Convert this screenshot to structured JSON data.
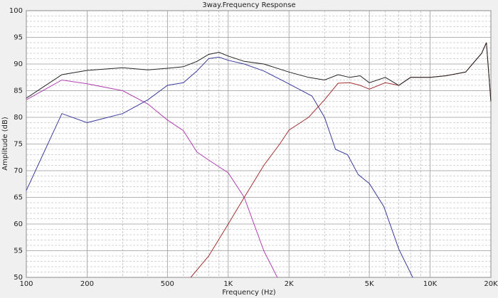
{
  "chart_data": {
    "type": "line",
    "title": "3way.Frequency Response",
    "x_label": "Frequency (Hz)",
    "y_label": "Amplitude (dB)",
    "x_scale": "log",
    "xlim": [
      100,
      20000
    ],
    "ylim": [
      50,
      100
    ],
    "xticks": [
      100,
      200,
      500,
      {
        "value": 1000,
        "label": "1K"
      },
      {
        "value": 2000,
        "label": "2K"
      },
      {
        "value": 5000,
        "label": "5K"
      },
      {
        "value": 10000,
        "label": "10K"
      },
      {
        "value": 20000,
        "label": "20K"
      }
    ],
    "x_minor_ticks": [
      300,
      400,
      600,
      700,
      800,
      900,
      3000,
      4000,
      6000,
      7000,
      8000,
      9000
    ],
    "yticks": [
      50,
      55,
      60,
      65,
      70,
      75,
      80,
      85,
      90,
      95,
      100
    ],
    "y_minor_ticks": [
      51,
      52,
      53,
      54,
      56,
      57,
      58,
      59,
      61,
      62,
      63,
      64,
      66,
      67,
      68,
      69,
      71,
      72,
      73,
      74,
      76,
      77,
      78,
      79,
      81,
      82,
      83,
      84,
      86,
      87,
      88,
      89,
      91,
      92,
      93,
      94,
      96,
      97,
      98,
      99
    ],
    "grid": true,
    "series": [
      {
        "color": "#b040b0",
        "x": [
          100,
          150,
          200,
          300,
          400,
          500,
          600,
          700,
          800,
          1000,
          1200,
          1500,
          1750
        ],
        "values": [
          83.3,
          87,
          86.3,
          85,
          82.5,
          79.5,
          77.5,
          73.5,
          72,
          69.6,
          65,
          55,
          50
        ]
      },
      {
        "color": "#3a3a9a",
        "x": [
          100,
          150,
          200,
          300,
          400,
          500,
          600,
          700,
          800,
          900,
          1000,
          1200,
          1500,
          1900,
          2600,
          3000,
          3400,
          3900,
          4400,
          5000,
          5900,
          7000,
          8200
        ],
        "values": [
          66.3,
          80.7,
          79,
          80.7,
          83.3,
          86,
          86.5,
          88.7,
          91,
          91.3,
          90.7,
          90,
          88.7,
          86.7,
          84,
          80,
          74,
          73,
          69.3,
          67.6,
          63.3,
          55.3,
          50
        ]
      },
      {
        "color": "#a03030",
        "x": [
          652,
          800,
          1000,
          1200,
          1500,
          1800,
          2000,
          2500,
          3000,
          3500,
          4000,
          4500,
          5000,
          6000,
          7000,
          8000,
          10000,
          12000,
          15000,
          18000,
          19000,
          20000
        ],
        "values": [
          50,
          54,
          60,
          65,
          71,
          75,
          77.6,
          80,
          83.3,
          86.4,
          86.5,
          86,
          85.3,
          86.5,
          86,
          87.5,
          87.5,
          87.8,
          88.5,
          92,
          94,
          83
        ]
      },
      {
        "color": "#222222",
        "x": [
          100,
          150,
          200,
          300,
          400,
          500,
          600,
          700,
          800,
          900,
          1000,
          1200,
          1500,
          2000,
          2500,
          3000,
          3500,
          4000,
          4500,
          5000,
          6000,
          7000,
          8000,
          10000,
          12000,
          15000,
          18000,
          19000,
          20000
        ],
        "values": [
          83.6,
          88,
          88.8,
          89.3,
          88.9,
          89.2,
          89.5,
          90.5,
          91.8,
          92.2,
          91.5,
          90.5,
          90,
          88.5,
          87.5,
          87,
          88,
          87.5,
          87.8,
          86.5,
          87.5,
          86,
          87.5,
          87.5,
          87.8,
          88.5,
          92,
          94,
          83
        ]
      }
    ]
  }
}
